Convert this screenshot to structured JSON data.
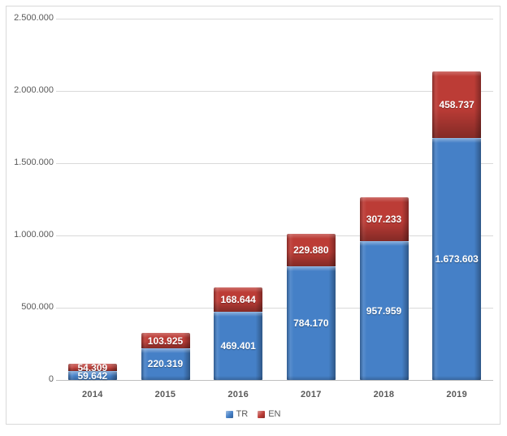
{
  "chart_data": {
    "type": "bar",
    "stacked": true,
    "categories": [
      "2014",
      "2015",
      "2016",
      "2017",
      "2018",
      "2019"
    ],
    "series": [
      {
        "name": "TR",
        "color": "#4580c7",
        "values": [
          59642,
          220319,
          469401,
          784170,
          957959,
          1673603
        ],
        "labels": [
          "59.642",
          "220.319",
          "469.401",
          "784.170",
          "957.959",
          "1.673.603"
        ]
      },
      {
        "name": "EN",
        "color": "#bc3c36",
        "values": [
          54309,
          103925,
          168644,
          229880,
          307233,
          458737
        ],
        "labels": [
          "54.309",
          "103.925",
          "168.644",
          "229.880",
          "307.233",
          "458.737"
        ]
      }
    ],
    "ylim": [
      0,
      2500000
    ],
    "y_tick_step": 500000,
    "y_ticks": [
      {
        "value": 0,
        "label": "0"
      },
      {
        "value": 500000,
        "label": "500.000"
      },
      {
        "value": 1000000,
        "label": "1.000.000"
      },
      {
        "value": 1500000,
        "label": "1.500.000"
      },
      {
        "value": 2000000,
        "label": "2.000.000"
      },
      {
        "value": 2500000,
        "label": "2.500.000"
      }
    ],
    "grid": true,
    "legend_position": "bottom",
    "colors": {
      "gridline": "#d9d9d9",
      "axis_line": "#bfbfbf",
      "tick_text": "#595959",
      "frame_border": "#d9d9d9",
      "data_label_text": "#ffffff"
    }
  }
}
